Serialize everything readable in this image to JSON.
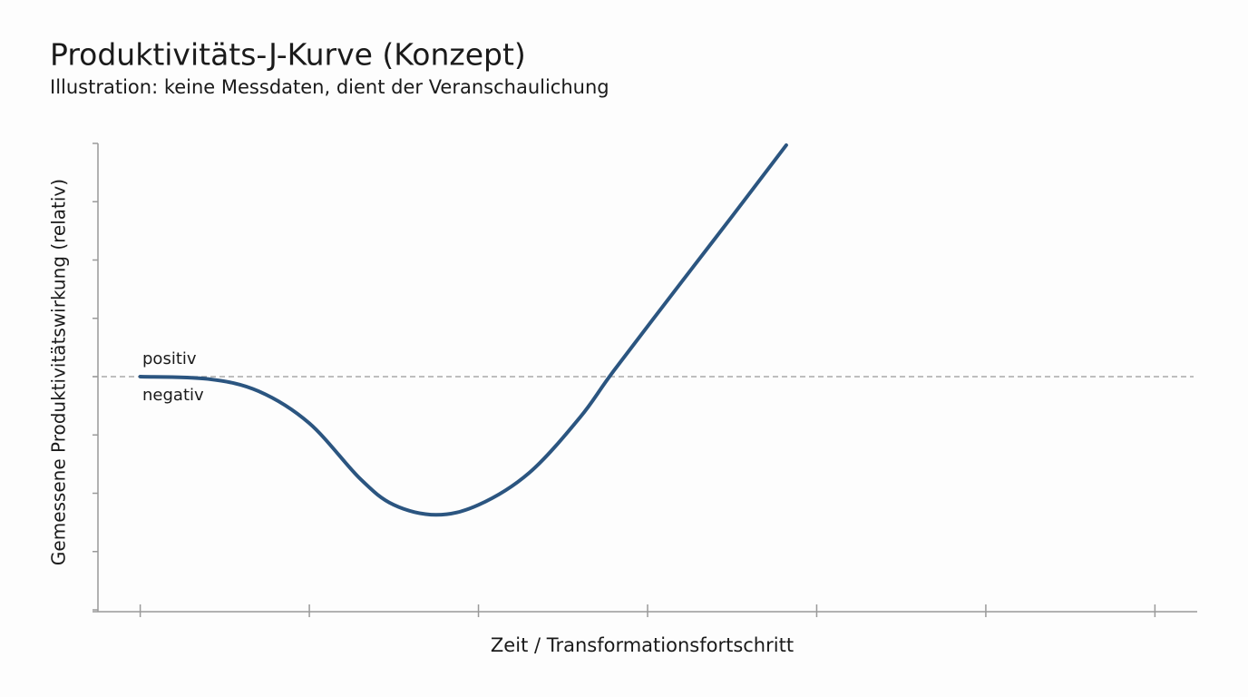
{
  "chart_data": {
    "type": "line",
    "title": "Produktivitäts-J-Kurve (Konzept)",
    "subtitle": "Illustration: keine Messdaten, dient der Veranschaulichung",
    "x_label": "Zeit / Transformationsfortschritt",
    "y_label": "Gemessene Produktivitätswirkung (relativ)",
    "annotations": [
      "positiv",
      "negativ"
    ],
    "x": [
      0,
      0.4,
      0.7,
      1.0,
      1.3,
      1.5,
      1.75,
      2.0,
      2.3,
      2.6,
      2.8,
      3.2,
      3.5,
      3.82
    ],
    "series": [
      {
        "color": "#2b5580",
        "values": [
          0,
          -0.04,
          -0.25,
          -0.8,
          -1.75,
          -2.2,
          -2.37,
          -2.2,
          -1.65,
          -0.7,
          0.1,
          1.62,
          2.75,
          3.97
        ]
      }
    ],
    "xlim": [
      -0.25,
      6.25
    ],
    "xticks": [
      0,
      1,
      2,
      3,
      4,
      5,
      6
    ],
    "ylim": [
      -4,
      4
    ],
    "yticks": [
      -4,
      -3,
      -2,
      -1,
      0,
      1,
      2,
      3,
      4
    ],
    "reference_line": 0
  }
}
